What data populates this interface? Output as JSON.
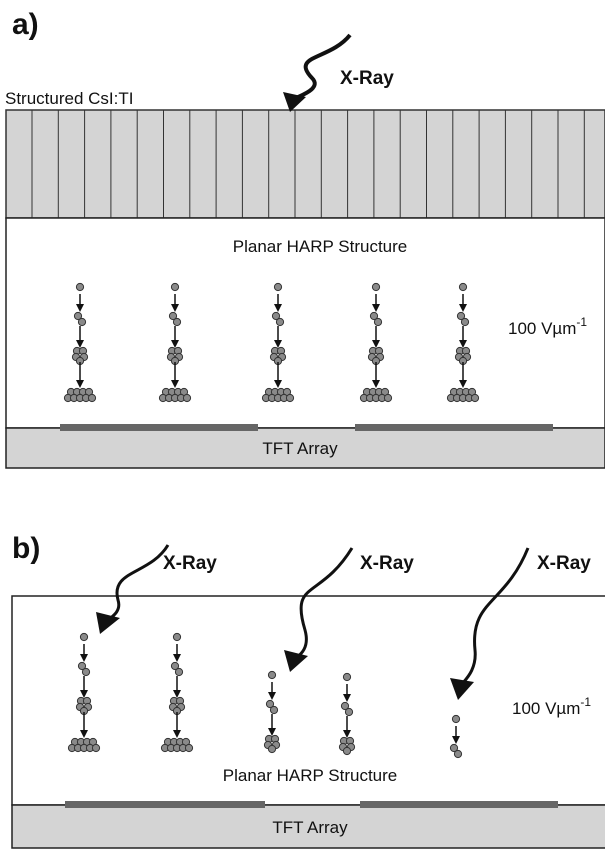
{
  "panel_a": {
    "label": "a)",
    "xray": "X-Ray",
    "scintillator": "Structured CsI:TI",
    "harp": "Planar HARP Structure",
    "field": "100 Vµm",
    "field_exponent": "-1",
    "tft": "TFT Array"
  },
  "panel_b": {
    "label": "b)",
    "xray": [
      "X-Ray",
      "X-Ray",
      "X-Ray"
    ],
    "harp": "Planar HARP Structure",
    "field": "100 Vµm",
    "field_exponent": "-1",
    "tft": "TFT Array"
  }
}
